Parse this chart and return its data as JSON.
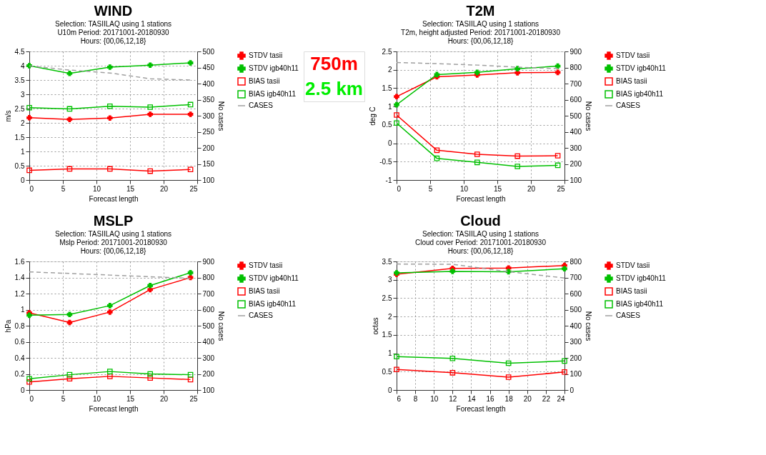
{
  "chart_data": [
    {
      "type": "line",
      "title": "WIND",
      "subtitle": "Selection: TASIILAQ using      1 stations\nU10m   Period: 20171001-20180930\nHours: {00,06,12,18}",
      "xlabel": "Forecast length",
      "ylabel": "m/s",
      "y2label": "No cases",
      "x": [
        0,
        6,
        12,
        18,
        24
      ],
      "xlim": [
        0,
        25
      ],
      "xticks": [
        0,
        5,
        10,
        15,
        20,
        25
      ],
      "ylim": [
        0,
        4.5
      ],
      "yticks": [
        0,
        0.5,
        1,
        1.5,
        2,
        2.5,
        3,
        3.5,
        4,
        4.5
      ],
      "y2lim": [
        100,
        500
      ],
      "y2ticks": [
        100,
        150,
        200,
        250,
        300,
        350,
        400,
        450,
        500
      ],
      "grid": true,
      "legend": "right",
      "series": [
        {
          "name": "STDV tasii",
          "color": "#ff0000",
          "marker": "cross",
          "values": [
            2.18,
            2.12,
            2.17,
            2.3,
            2.3
          ]
        },
        {
          "name": "STDV igb40h11",
          "color": "#00c000",
          "marker": "cross",
          "values": [
            4.0,
            3.73,
            3.95,
            4.02,
            4.1
          ]
        },
        {
          "name": "BIAS tasii",
          "color": "#ff0000",
          "marker": "square",
          "values": [
            0.34,
            0.39,
            0.39,
            0.31,
            0.37
          ]
        },
        {
          "name": "BIAS igb40h11",
          "color": "#00c000",
          "marker": "square",
          "values": [
            2.53,
            2.49,
            2.58,
            2.55,
            2.64
          ]
        },
        {
          "name": "CASES",
          "color": "#a0a0a0",
          "marker": "none",
          "line_style": "dashed",
          "axis": "y2",
          "values": [
            455,
            442,
            433,
            415,
            411
          ]
        }
      ]
    },
    {
      "type": "line",
      "title": "T2M",
      "subtitle": "Selection: TASIILAQ using      1 stations\nT2m, height adjusted   Period: 20171001-20180930\nHours: {00,06,12,18}",
      "xlabel": "Forecast length",
      "ylabel": "deg C",
      "y2label": "No cases",
      "x": [
        0,
        6,
        12,
        18,
        24
      ],
      "xlim": [
        0,
        25
      ],
      "xticks": [
        0,
        5,
        10,
        15,
        20,
        25
      ],
      "ylim": [
        -1,
        2.5
      ],
      "yticks": [
        -1,
        -0.5,
        0,
        0.5,
        1,
        1.5,
        2,
        2.5
      ],
      "y2lim": [
        100,
        900
      ],
      "y2ticks": [
        100,
        200,
        300,
        400,
        500,
        600,
        700,
        800,
        900
      ],
      "grid": true,
      "legend": "right",
      "series": [
        {
          "name": "STDV tasii",
          "color": "#ff0000",
          "marker": "cross",
          "values": [
            1.27,
            1.81,
            1.86,
            1.92,
            1.93
          ]
        },
        {
          "name": "STDV igb40h11",
          "color": "#00c000",
          "marker": "cross",
          "values": [
            1.05,
            1.87,
            1.93,
            2.03,
            2.1
          ]
        },
        {
          "name": "BIAS tasii",
          "color": "#ff0000",
          "marker": "square",
          "values": [
            0.77,
            -0.19,
            -0.3,
            -0.35,
            -0.34
          ]
        },
        {
          "name": "BIAS igb40h11",
          "color": "#00c000",
          "marker": "square",
          "values": [
            0.55,
            -0.41,
            -0.52,
            -0.63,
            -0.6
          ]
        },
        {
          "name": "CASES",
          "color": "#a0a0a0",
          "marker": "none",
          "line_style": "dashed",
          "axis": "y2",
          "values": [
            831,
            824,
            815,
            802,
            793
          ]
        }
      ]
    },
    {
      "type": "other",
      "annotations": [
        "750m",
        "2.5 km"
      ],
      "colors": [
        "#ff0000",
        "#00ee00"
      ]
    },
    {
      "type": "line",
      "title": "MSLP",
      "subtitle": "Selection: TASIILAQ using      1 stations\nMslp   Period: 20171001-20180930\nHours: {00,06,12,18}",
      "xlabel": "Forecast length",
      "ylabel": "hPa",
      "y2label": "No cases",
      "x": [
        0,
        6,
        12,
        18,
        24
      ],
      "xlim": [
        0,
        25
      ],
      "xticks": [
        0,
        5,
        10,
        15,
        20,
        25
      ],
      "ylim": [
        0,
        1.6
      ],
      "yticks": [
        0,
        0.2,
        0.4,
        0.6,
        0.8,
        1,
        1.2,
        1.4,
        1.6
      ],
      "y2lim": [
        100,
        900
      ],
      "y2ticks": [
        100,
        200,
        300,
        400,
        500,
        600,
        700,
        800,
        900
      ],
      "grid": true,
      "legend": "right",
      "series": [
        {
          "name": "STDV tasii",
          "color": "#ff0000",
          "marker": "cross",
          "values": [
            0.96,
            0.84,
            0.97,
            1.25,
            1.4
          ]
        },
        {
          "name": "STDV igb40h11",
          "color": "#00c000",
          "marker": "cross",
          "values": [
            0.93,
            0.94,
            1.05,
            1.3,
            1.46
          ]
        },
        {
          "name": "BIAS tasii",
          "color": "#ff0000",
          "marker": "square",
          "values": [
            0.1,
            0.14,
            0.17,
            0.15,
            0.13
          ]
        },
        {
          "name": "BIAS igb40h11",
          "color": "#00c000",
          "marker": "square",
          "values": [
            0.14,
            0.19,
            0.23,
            0.2,
            0.19
          ]
        },
        {
          "name": "CASES",
          "color": "#a0a0a0",
          "marker": "none",
          "line_style": "dashed",
          "axis": "y2",
          "values": [
            835,
            825,
            815,
            805,
            795
          ]
        }
      ]
    },
    {
      "type": "line",
      "title": "Cloud",
      "subtitle": "Selection: TASIILAQ using      1 stations\nCloud cover   Period: 20171001-20180930\nHours: {00,06,12,18}",
      "xlabel": "Forecast length",
      "ylabel": "octas",
      "y2label": "No cases",
      "x": [
        6,
        12,
        18,
        24
      ],
      "xlim": [
        6,
        24
      ],
      "xticks": [
        6,
        8,
        10,
        12,
        14,
        16,
        18,
        20,
        22,
        24
      ],
      "ylim": [
        0,
        3.5
      ],
      "yticks": [
        0,
        0.5,
        1,
        1.5,
        2,
        2.5,
        3,
        3.5
      ],
      "y2lim": [
        0,
        800
      ],
      "y2ticks": [
        0,
        100,
        200,
        300,
        400,
        500,
        600,
        700,
        800
      ],
      "grid": true,
      "legend": "right",
      "series": [
        {
          "name": "STDV tasii",
          "color": "#ff0000",
          "marker": "cross",
          "values": [
            3.15,
            3.31,
            3.32,
            3.39
          ]
        },
        {
          "name": "STDV igb40h11",
          "color": "#00c000",
          "marker": "cross",
          "values": [
            3.19,
            3.23,
            3.22,
            3.3
          ]
        },
        {
          "name": "BIAS tasii",
          "color": "#ff0000",
          "marker": "square",
          "values": [
            0.56,
            0.47,
            0.35,
            0.49
          ]
        },
        {
          "name": "BIAS igb40h11",
          "color": "#00c000",
          "marker": "square",
          "values": [
            0.91,
            0.86,
            0.73,
            0.79
          ]
        },
        {
          "name": "CASES",
          "color": "#a0a0a0",
          "marker": "none",
          "line_style": "dashed",
          "axis": "y2",
          "values": [
            784,
            782,
            736,
            697
          ]
        }
      ]
    }
  ]
}
